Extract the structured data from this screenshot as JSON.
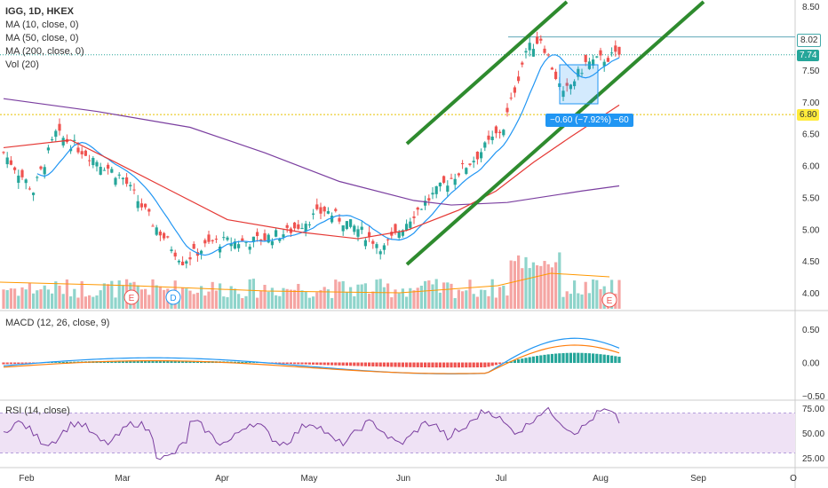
{
  "chart_data": {
    "type": "candlestick",
    "symbol_line": "IGG, 1D, HKEX",
    "indicators": [
      "MA (10, close, 0)",
      "MA (50, close, 0)",
      "MA (200, close, 0)",
      "Vol (20)"
    ],
    "macd_label": "MACD (12, 26, close, 9)",
    "rsi_label": "RSI (14, close)",
    "price_axis": {
      "ylim": [
        3.75,
        8.6
      ],
      "ticks": [
        "8.50",
        "8.00",
        "7.50",
        "7.00",
        "6.50",
        "6.00",
        "5.50",
        "5.00",
        "4.50",
        "4.00"
      ],
      "tick_values": [
        8.5,
        8.0,
        7.5,
        7.0,
        6.5,
        6.0,
        5.5,
        5.0,
        4.5,
        4.0
      ]
    },
    "macd_axis": {
      "ylim": [
        -0.55,
        0.75
      ],
      "ticks": [
        "0.50",
        "0.00",
        "−0.50"
      ],
      "tick_values": [
        0.5,
        0.0,
        -0.5
      ]
    },
    "rsi_axis": {
      "ylim": [
        18,
        82
      ],
      "ticks": [
        "75.00",
        "50.00",
        "25.00"
      ],
      "tick_values": [
        75,
        50,
        25
      ]
    },
    "x_labels": [
      "Feb",
      "Mar",
      "Apr",
      "May",
      "Jun",
      "Jul",
      "Aug",
      "Sep",
      "O"
    ],
    "tags": {
      "high_line": "8.02",
      "last_price": "7.74",
      "level": "6.80"
    },
    "measure_label": "−0.60 (−7.92%) −60",
    "event_markers": [
      "E",
      "D",
      "E"
    ],
    "colors": {
      "up": "#26a69a",
      "down": "#ef5350",
      "ma10": "#2196f3",
      "ma50": "#e53935",
      "ma200": "#7b3fa0",
      "channel": "#2e8b2e",
      "macd": "#2196f3",
      "signal": "#ff7f0e",
      "rsi": "#7b3fa0"
    },
    "ma200": [
      [
        0,
        7.05
      ],
      [
        25,
        6.85
      ],
      [
        50,
        6.6
      ],
      [
        70,
        6.2
      ],
      [
        90,
        5.75
      ],
      [
        110,
        5.45
      ],
      [
        120,
        5.38
      ],
      [
        135,
        5.42
      ],
      [
        155,
        5.6
      ],
      [
        165,
        5.68
      ]
    ],
    "ma50": [
      [
        0,
        6.28
      ],
      [
        18,
        6.4
      ],
      [
        30,
        6.05
      ],
      [
        45,
        5.6
      ],
      [
        60,
        5.15
      ],
      [
        80,
        4.95
      ],
      [
        95,
        4.85
      ],
      [
        108,
        4.98
      ],
      [
        122,
        5.3
      ],
      [
        132,
        5.6
      ],
      [
        142,
        6.05
      ],
      [
        152,
        6.45
      ],
      [
        165,
        6.95
      ]
    ]
  }
}
